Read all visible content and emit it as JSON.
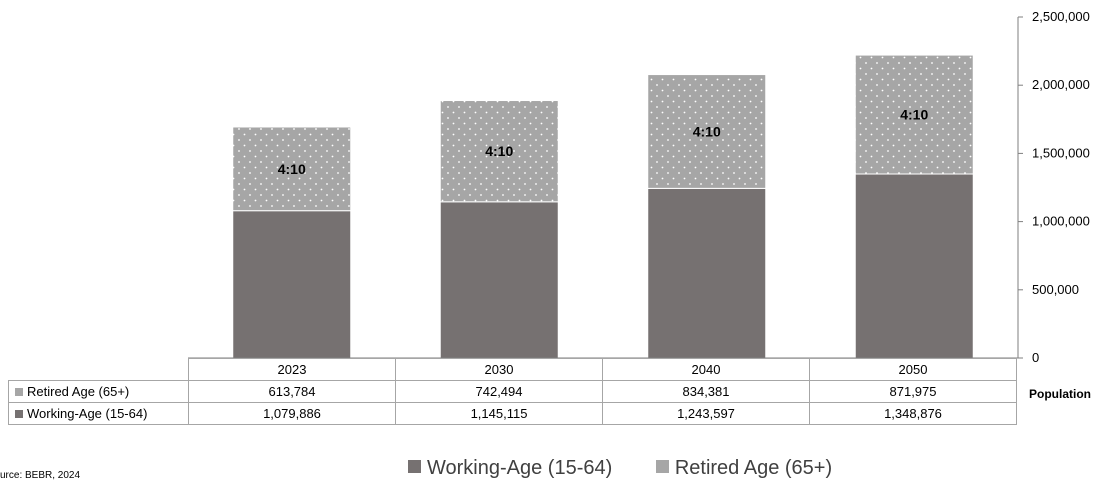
{
  "chart_data": {
    "type": "bar",
    "stacked": true,
    "categories": [
      "2023",
      "2030",
      "2040",
      "2050"
    ],
    "series": [
      {
        "name": "Working-Age (15-64)",
        "values": [
          1079886,
          1145115,
          1243597,
          1348876
        ],
        "color": "#767171"
      },
      {
        "name": "Retired Age (65+)",
        "values": [
          613784,
          742494,
          834381,
          871975
        ],
        "color": "#a6a6a6",
        "pattern": "dotted"
      }
    ],
    "data_labels": [
      "4:10",
      "4:10",
      "4:10",
      "4:10"
    ],
    "y_ticks": [
      "0",
      "500,000",
      "1,000,000",
      "1,500,000",
      "2,000,000",
      "2,500,000"
    ],
    "ylim": [
      0,
      2500000
    ],
    "ylabel": "Population",
    "y_axis_side": "right",
    "legend_position": "bottom",
    "data_table": true,
    "grid": false
  },
  "table": {
    "rows": [
      {
        "label": "Retired Age (65+)",
        "values": [
          "613,784",
          "742,494",
          "834,381",
          "871,975"
        ],
        "color": "#a6a6a6"
      },
      {
        "label": "Working-Age (15-64)",
        "values": [
          "1,079,886",
          "1,145,115",
          "1,243,597",
          "1,348,876"
        ],
        "color": "#767171"
      }
    ]
  },
  "source": "urce: BEBR, 2024",
  "legend": [
    {
      "label": "Working-Age (15-64)",
      "color": "#767171"
    },
    {
      "label": "Retired Age (65+)",
      "color": "#a6a6a6"
    }
  ]
}
